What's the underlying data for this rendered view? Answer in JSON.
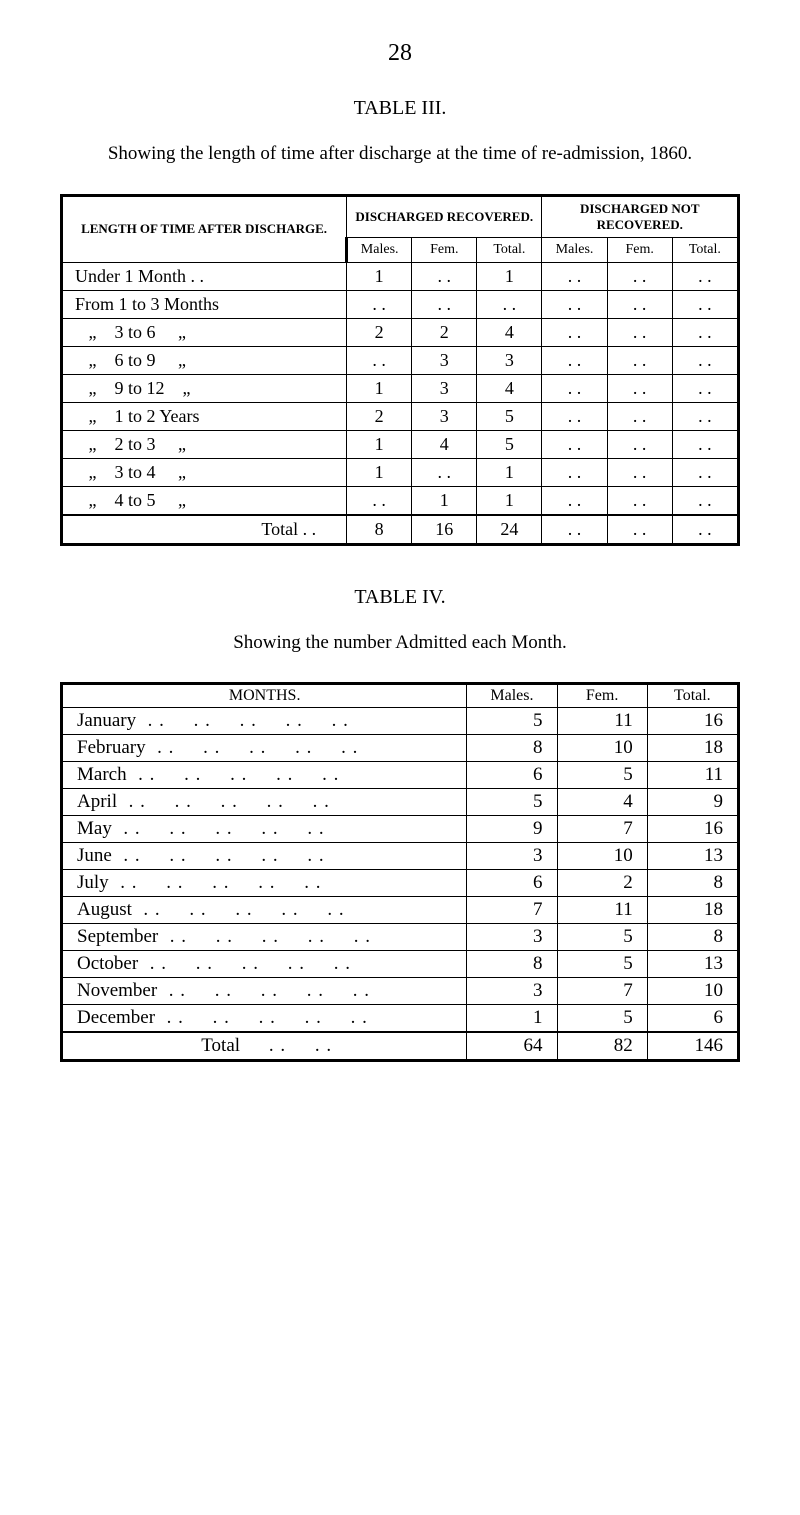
{
  "page_number": "28",
  "table3": {
    "heading": "TABLE III.",
    "caption": "Showing the length of time after discharge at the time of re-admission, 1860.",
    "col_group_left": "LENGTH OF TIME AFTER DISCHARGE.",
    "col_group_rec": "DISCHARGED RECOVERED.",
    "col_group_notrec": "DISCHARGED NOT RECOVERED.",
    "sub_males": "Males.",
    "sub_fem": "Fem.",
    "sub_total": "Total.",
    "rows": [
      {
        "label": "Under 1 Month . .",
        "m": "1",
        "f": ". .",
        "t": "1",
        "m2": ". .",
        "f2": ". .",
        "t2": ". ."
      },
      {
        "label": "From 1 to 3 Months",
        "m": ". .",
        "f": ". .",
        "t": ". .",
        "m2": ". .",
        "f2": ". .",
        "t2": ". ."
      },
      {
        "label": "   „    3 to 6     „",
        "m": "2",
        "f": "2",
        "t": "4",
        "m2": ". .",
        "f2": ". .",
        "t2": ". ."
      },
      {
        "label": "   „    6 to 9     „",
        "m": ". .",
        "f": "3",
        "t": "3",
        "m2": ". .",
        "f2": ". .",
        "t2": ". ."
      },
      {
        "label": "   „    9 to 12    „",
        "m": "1",
        "f": "3",
        "t": "4",
        "m2": ". .",
        "f2": ". .",
        "t2": ". ."
      },
      {
        "label": "   „    1 to 2 Years",
        "m": "2",
        "f": "3",
        "t": "5",
        "m2": ". .",
        "f2": ". .",
        "t2": ". ."
      },
      {
        "label": "   „    2 to 3     „",
        "m": "1",
        "f": "4",
        "t": "5",
        "m2": ". .",
        "f2": ". .",
        "t2": ". ."
      },
      {
        "label": "   „    3 to 4     „",
        "m": "1",
        "f": ". .",
        "t": "1",
        "m2": ". .",
        "f2": ". .",
        "t2": ". ."
      },
      {
        "label": "   „    4 to 5     „",
        "m": ". .",
        "f": "1",
        "t": "1",
        "m2": ". .",
        "f2": ". .",
        "t2": ". ."
      }
    ],
    "total_label": "Total . .",
    "total": {
      "m": "8",
      "f": "16",
      "t": "24",
      "m2": ". .",
      "f2": ". .",
      "t2": ". ."
    }
  },
  "table4": {
    "heading": "TABLE IV.",
    "caption": "Showing the number Admitted each Month.",
    "col_months": "MONTHS.",
    "col_males": "Males.",
    "col_fem": "Fem.",
    "col_total": "Total.",
    "rows": [
      {
        "m": "January",
        "a": "5",
        "b": "11",
        "c": "16"
      },
      {
        "m": "February",
        "a": "8",
        "b": "10",
        "c": "18"
      },
      {
        "m": "March",
        "a": "6",
        "b": "5",
        "c": "11"
      },
      {
        "m": "April",
        "a": "5",
        "b": "4",
        "c": "9"
      },
      {
        "m": "May",
        "a": "9",
        "b": "7",
        "c": "16"
      },
      {
        "m": "June",
        "a": "3",
        "b": "10",
        "c": "13"
      },
      {
        "m": "July",
        "a": "6",
        "b": "2",
        "c": "8"
      },
      {
        "m": "August",
        "a": "7",
        "b": "11",
        "c": "18"
      },
      {
        "m": "September",
        "a": "3",
        "b": "5",
        "c": "8"
      },
      {
        "m": "October",
        "a": "8",
        "b": "5",
        "c": "13"
      },
      {
        "m": "November",
        "a": "3",
        "b": "7",
        "c": "10"
      },
      {
        "m": "December",
        "a": "1",
        "b": "5",
        "c": "6"
      }
    ],
    "total_label": "Total",
    "total": {
      "a": "64",
      "b": "82",
      "c": "146"
    }
  }
}
